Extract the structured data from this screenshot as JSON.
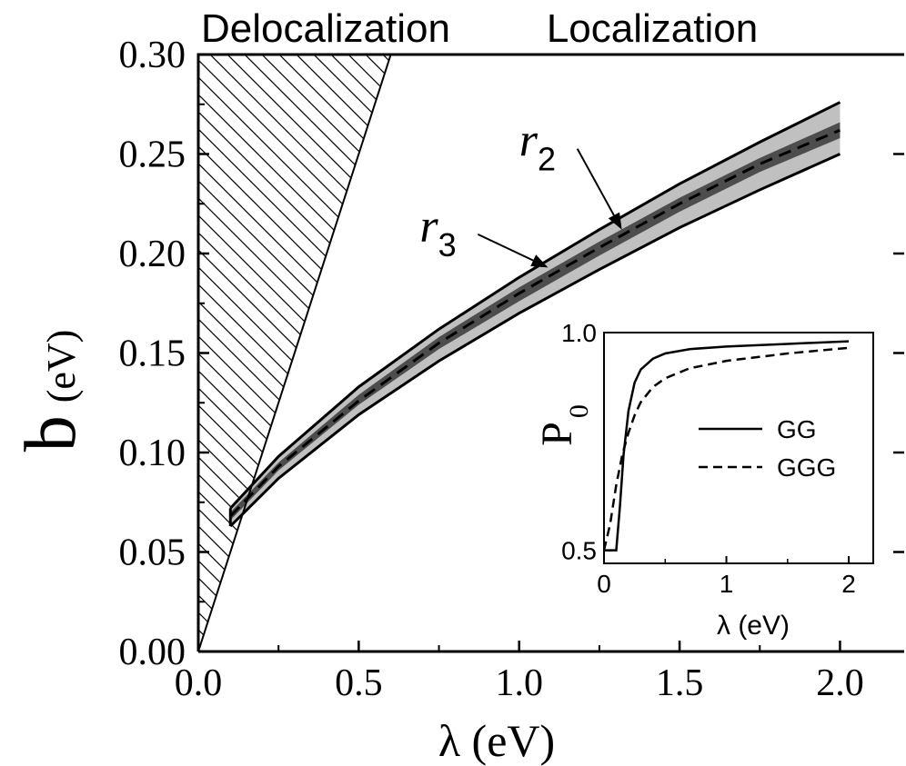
{
  "chart_data": [
    {
      "type": "area",
      "region_labels": {
        "left": "Delocalization",
        "right": "Localization"
      },
      "xlabel": "λ (eV)",
      "ylabel": {
        "main": "b",
        "unit": "(eV)"
      },
      "xlim": [
        0.0,
        2.2
      ],
      "ylim": [
        0.0,
        0.3
      ],
      "xticks": [
        0.0,
        0.5,
        1.0,
        1.5,
        2.0
      ],
      "xtick_labels": [
        "0.0",
        "0.5",
        "1.0",
        "1.5",
        "2.0"
      ],
      "yticks": [
        0.0,
        0.05,
        0.1,
        0.15,
        0.2,
        0.25,
        0.3
      ],
      "ytick_labels": [
        "0.00",
        "0.05",
        "0.10",
        "0.15",
        "0.20",
        "0.25",
        "0.30"
      ],
      "grid": false,
      "delocalization_boundary": {
        "x": [
          0.0,
          0.6
        ],
        "y": [
          0.0,
          0.3
        ],
        "fill": "hatched"
      },
      "bands": [
        {
          "name": "r2",
          "color": "#c0c0c0",
          "x": [
            0.1,
            0.25,
            0.5,
            0.75,
            1.0,
            1.25,
            1.5,
            1.75,
            2.0
          ],
          "upper": [
            0.072,
            0.098,
            0.133,
            0.162,
            0.188,
            0.212,
            0.235,
            0.256,
            0.276
          ],
          "lower": [
            0.063,
            0.087,
            0.119,
            0.146,
            0.17,
            0.192,
            0.213,
            0.232,
            0.25
          ]
        },
        {
          "name": "r3",
          "color": "#4d4d4d",
          "x": [
            0.1,
            0.25,
            0.5,
            0.75,
            1.0,
            1.25,
            1.5,
            1.75,
            2.0
          ],
          "upper": [
            0.07,
            0.095,
            0.129,
            0.158,
            0.183,
            0.206,
            0.228,
            0.248,
            0.266
          ],
          "lower": [
            0.066,
            0.091,
            0.124,
            0.152,
            0.176,
            0.199,
            0.221,
            0.241,
            0.258
          ]
        }
      ],
      "dashed_line": {
        "x": [
          0.1,
          0.25,
          0.5,
          0.75,
          1.0,
          1.25,
          1.5,
          1.75,
          2.0
        ],
        "y": [
          0.068,
          0.093,
          0.126,
          0.155,
          0.18,
          0.203,
          0.225,
          0.245,
          0.262
        ]
      },
      "annotations": [
        {
          "base": "r",
          "sub": "2",
          "points_to": [
            1.32,
            0.212
          ],
          "text_at": [
            1.0,
            0.249
          ]
        },
        {
          "base": "r",
          "sub": "3",
          "points_to": [
            1.09,
            0.193
          ],
          "text_at": [
            0.69,
            0.206
          ]
        }
      ]
    },
    {
      "type": "line",
      "xlabel": "λ (eV)",
      "ylabel": {
        "main": "P",
        "sub": "0"
      },
      "xlim": [
        0.0,
        2.2
      ],
      "ylim": [
        0.47,
        1.0
      ],
      "xticks": [
        0,
        1,
        2
      ],
      "xtick_labels": [
        "0",
        "1",
        "2"
      ],
      "yticks": [
        0.5,
        1.0
      ],
      "ytick_labels": [
        "0.5",
        "1.0"
      ],
      "legend": "center-right",
      "series": [
        {
          "name": "GG",
          "style": "solid",
          "x": [
            0.0,
            0.1,
            0.13,
            0.16,
            0.2,
            0.25,
            0.3,
            0.4,
            0.5,
            0.7,
            1.0,
            1.5,
            2.0
          ],
          "y": [
            0.5,
            0.5,
            0.6,
            0.72,
            0.82,
            0.885,
            0.915,
            0.94,
            0.952,
            0.962,
            0.968,
            0.974,
            0.98
          ]
        },
        {
          "name": "GGG",
          "style": "dashed",
          "x": [
            0.0,
            0.05,
            0.1,
            0.15,
            0.2,
            0.25,
            0.3,
            0.4,
            0.5,
            0.7,
            1.0,
            1.5,
            2.0
          ],
          "y": [
            0.5,
            0.56,
            0.65,
            0.72,
            0.77,
            0.81,
            0.84,
            0.875,
            0.895,
            0.918,
            0.935,
            0.952,
            0.965
          ]
        }
      ]
    }
  ]
}
